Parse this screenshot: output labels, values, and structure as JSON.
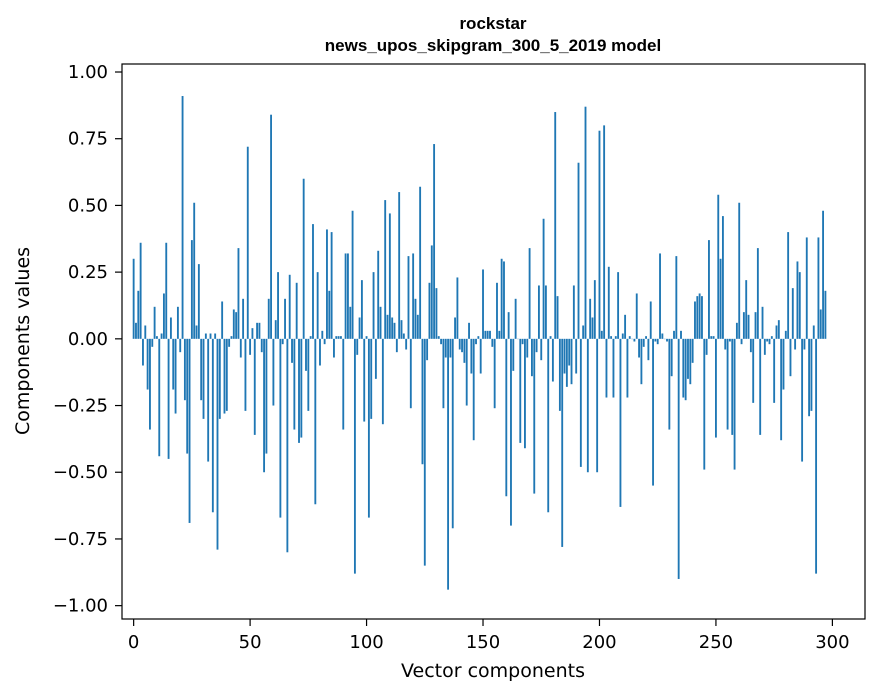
{
  "chart_data": {
    "type": "bar",
    "title": "rockstar",
    "subtitle": "news_upos_skipgram_300_5_2019 model",
    "xlabel": "Vector components",
    "ylabel": "Components values",
    "xlim": [
      -5,
      314
    ],
    "ylim": [
      -1.05,
      1.03
    ],
    "xticks": [
      0,
      50,
      100,
      150,
      200,
      250,
      300
    ],
    "xtick_labels": [
      "0",
      "50",
      "100",
      "150",
      "200",
      "250",
      "300"
    ],
    "yticks": [
      1.0,
      0.75,
      0.5,
      0.25,
      0.0,
      -0.25,
      -0.5,
      -0.75,
      -1.0
    ],
    "ytick_labels": [
      "1.00",
      "0.75",
      "0.50",
      "0.25",
      "0.00",
      "−0.25",
      "−0.50",
      "−0.75",
      "−1.00"
    ],
    "grid": false,
    "bar_color": "#1f77b4",
    "series": [
      {
        "values": [
          0.3,
          0.06,
          0.18,
          0.36,
          -0.1,
          0.05,
          -0.19,
          -0.34,
          -0.03,
          0.12,
          0.01,
          -0.44,
          0.02,
          0.17,
          0.36,
          -0.45,
          0.08,
          -0.19,
          -0.28,
          0.12,
          -0.05,
          0.91,
          -0.23,
          -0.43,
          -0.69,
          0.37,
          0.51,
          0.05,
          0.28,
          -0.23,
          -0.3,
          0.02,
          -0.46,
          0.02,
          -0.65,
          0.02,
          -0.79,
          -0.3,
          0.14,
          -0.28,
          -0.27,
          -0.03,
          0.01,
          0.11,
          0.1,
          0.34,
          -0.07,
          0.15,
          -0.27,
          0.72,
          -0.06,
          0.04,
          -0.36,
          0.06,
          0.06,
          -0.05,
          -0.5,
          -0.43,
          0.15,
          0.84,
          -0.25,
          0.07,
          0.25,
          -0.67,
          -0.02,
          0.15,
          -0.8,
          0.24,
          -0.09,
          -0.34,
          0.21,
          -0.39,
          -0.37,
          0.6,
          -0.12,
          -0.27,
          0.01,
          0.43,
          -0.62,
          0.25,
          -0.1,
          0.03,
          -0.02,
          0.41,
          0.18,
          0.4,
          -0.07,
          0.01,
          0.01,
          0.01,
          -0.34,
          0.32,
          0.32,
          0.12,
          0.48,
          -0.88,
          -0.06,
          0.08,
          0.22,
          -0.31,
          0.01,
          -0.67,
          -0.3,
          0.25,
          -0.15,
          0.33,
          0.12,
          -0.32,
          0.52,
          0.09,
          0.47,
          0.08,
          0.06,
          -0.05,
          0.55,
          0.07,
          0.02,
          -0.04,
          0.31,
          -0.26,
          0.32,
          0.15,
          0.09,
          0.57,
          -0.47,
          -0.85,
          -0.08,
          0.21,
          0.35,
          0.73,
          0.19,
          0.01,
          -0.02,
          -0.26,
          -0.07,
          -0.94,
          -0.07,
          -0.71,
          0.08,
          0.23,
          -0.04,
          -0.05,
          -0.09,
          -0.25,
          0.06,
          -0.13,
          -0.38,
          -0.02,
          0.01,
          -0.13,
          0.26,
          0.03,
          0.03,
          0.03,
          -0.03,
          -0.26,
          0.21,
          0.03,
          0.3,
          0.29,
          -0.59,
          0.1,
          -0.7,
          -0.12,
          0.15,
          0.0,
          -0.39,
          -0.02,
          -0.41,
          -0.07,
          0.34,
          -0.14,
          -0.58,
          -0.05,
          0.2,
          -0.08,
          0.45,
          0.2,
          -0.65,
          0.01,
          -0.16,
          0.85,
          0.16,
          -0.27,
          -0.78,
          -0.13,
          -0.18,
          -0.1,
          -0.17,
          0.2,
          -0.13,
          0.66,
          -0.48,
          0.05,
          0.87,
          -0.5,
          0.15,
          0.08,
          0.22,
          -0.5,
          0.78,
          0.03,
          0.8,
          -0.22,
          0.27,
          0.01,
          -0.22,
          0.01,
          0.25,
          -0.63,
          0.02,
          0.09,
          -0.22,
          0.01,
          0.0,
          -0.01,
          0.17,
          -0.07,
          -0.17,
          -0.03,
          0.01,
          -0.08,
          0.14,
          -0.55,
          -0.01,
          -0.02,
          0.32,
          0.02,
          0.0,
          -0.01,
          -0.34,
          -0.14,
          0.03,
          0.31,
          -0.9,
          0.03,
          -0.22,
          -0.23,
          -0.15,
          -0.17,
          -0.09,
          0.14,
          0.16,
          0.17,
          0.16,
          -0.49,
          -0.06,
          0.37,
          0.01,
          0.01,
          -0.37,
          0.54,
          0.3,
          0.46,
          -0.04,
          -0.34,
          -0.01,
          -0.36,
          -0.49,
          0.06,
          0.51,
          -0.02,
          0.1,
          0.22,
          0.09,
          -0.05,
          -0.24,
          0.1,
          0.34,
          -0.36,
          0.12,
          -0.06,
          -0.01,
          -0.02,
          0.01,
          -0.24,
          0.05,
          0.07,
          -0.38,
          -0.19,
          0.03,
          0.4,
          -0.14,
          0.19,
          -0.04,
          0.29,
          0.25,
          -0.46,
          -0.04,
          0.38,
          -0.29,
          -0.27,
          0.05,
          -0.88,
          0.38,
          0.11,
          0.48,
          0.18
        ]
      }
    ]
  }
}
